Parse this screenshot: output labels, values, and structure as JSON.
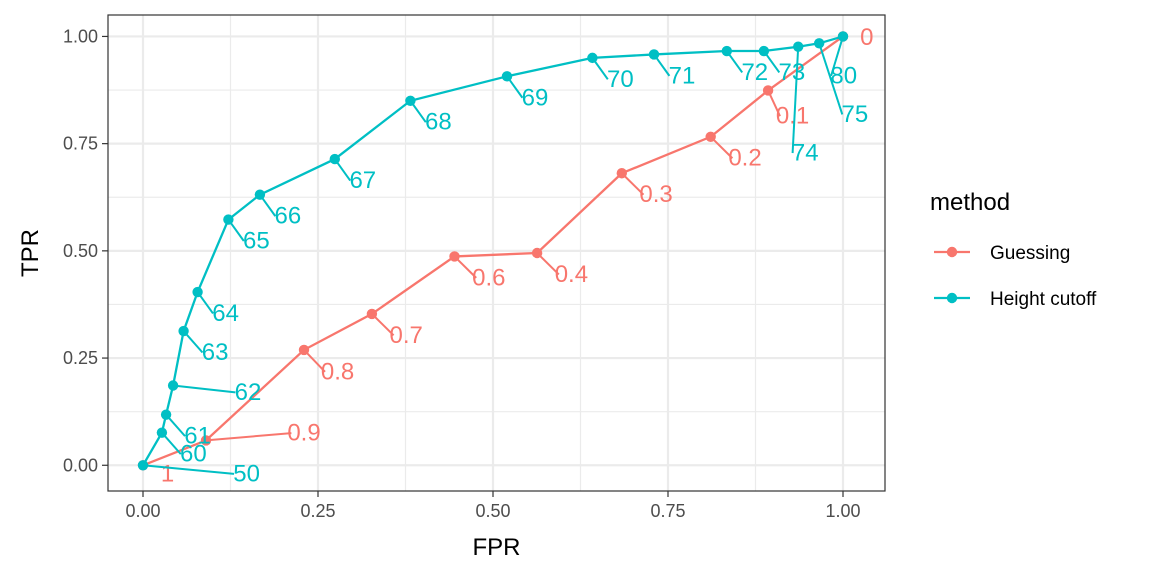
{
  "chart_data": {
    "type": "line",
    "xlabel": "FPR",
    "ylabel": "TPR",
    "xlim": [
      -0.05,
      1.06
    ],
    "ylim": [
      -0.06,
      1.05
    ],
    "x_ticks": [
      {
        "value": 0.0,
        "label": "0.00"
      },
      {
        "value": 0.25,
        "label": "0.25"
      },
      {
        "value": 0.5,
        "label": "0.50"
      },
      {
        "value": 0.75,
        "label": "0.75"
      },
      {
        "value": 1.0,
        "label": "1.00"
      }
    ],
    "y_ticks": [
      {
        "value": 0.0,
        "label": "0.00"
      },
      {
        "value": 0.25,
        "label": "0.25"
      },
      {
        "value": 0.5,
        "label": "0.50"
      },
      {
        "value": 0.75,
        "label": "0.75"
      },
      {
        "value": 1.0,
        "label": "1.00"
      }
    ],
    "grid": true,
    "legend": {
      "title": "method",
      "placement": "right"
    },
    "series": [
      {
        "name": "Guessing",
        "color": "#F8766D",
        "points": [
          {
            "x": 0.0,
            "y": 0.0,
            "label": "1",
            "lx": 0.035,
            "ly": -0.02
          },
          {
            "x": 0.09,
            "y": 0.058,
            "label": "0.9",
            "lx": 0.23,
            "ly": 0.075
          },
          {
            "x": 0.23,
            "y": 0.269,
            "label": "0.8",
            "lx": 0.278,
            "ly": 0.218
          },
          {
            "x": 0.327,
            "y": 0.353,
            "label": "0.7",
            "lx": 0.376,
            "ly": 0.303
          },
          {
            "x": 0.445,
            "y": 0.487,
            "label": "0.6",
            "lx": 0.494,
            "ly": 0.437
          },
          {
            "x": 0.563,
            "y": 0.495,
            "label": "0.4",
            "lx": 0.612,
            "ly": 0.445
          },
          {
            "x": 0.684,
            "y": 0.681,
            "label": "0.3",
            "lx": 0.733,
            "ly": 0.631
          },
          {
            "x": 0.811,
            "y": 0.766,
            "label": "0.2",
            "lx": 0.86,
            "ly": 0.716
          },
          {
            "x": 0.893,
            "y": 0.874,
            "label": "0.1",
            "lx": 0.928,
            "ly": 0.814
          },
          {
            "x": 1.0,
            "y": 1.0,
            "label": "0",
            "lx": 1.034,
            "ly": 0.998
          }
        ]
      },
      {
        "name": "Height cutoff",
        "color": "#00BFC4",
        "points": [
          {
            "x": 0.0,
            "y": 0.0,
            "label": "50",
            "lx": 0.148,
            "ly": -0.02
          },
          {
            "x": 0.027,
            "y": 0.076,
            "label": "60",
            "lx": 0.072,
            "ly": 0.026
          },
          {
            "x": 0.033,
            "y": 0.118,
            "label": "61",
            "lx": 0.078,
            "ly": 0.068
          },
          {
            "x": 0.043,
            "y": 0.186,
            "label": "62",
            "lx": 0.15,
            "ly": 0.17
          },
          {
            "x": 0.058,
            "y": 0.313,
            "label": "63",
            "lx": 0.103,
            "ly": 0.263
          },
          {
            "x": 0.078,
            "y": 0.404,
            "label": "64",
            "lx": 0.118,
            "ly": 0.354
          },
          {
            "x": 0.122,
            "y": 0.573,
            "label": "65",
            "lx": 0.162,
            "ly": 0.523
          },
          {
            "x": 0.167,
            "y": 0.631,
            "label": "66",
            "lx": 0.207,
            "ly": 0.581
          },
          {
            "x": 0.274,
            "y": 0.714,
            "label": "67",
            "lx": 0.314,
            "ly": 0.664
          },
          {
            "x": 0.382,
            "y": 0.85,
            "label": "68",
            "lx": 0.422,
            "ly": 0.8
          },
          {
            "x": 0.52,
            "y": 0.907,
            "label": "69",
            "lx": 0.56,
            "ly": 0.857
          },
          {
            "x": 0.642,
            "y": 0.95,
            "label": "70",
            "lx": 0.682,
            "ly": 0.9
          },
          {
            "x": 0.73,
            "y": 0.958,
            "label": "71",
            "lx": 0.77,
            "ly": 0.908
          },
          {
            "x": 0.834,
            "y": 0.966,
            "label": "72",
            "lx": 0.874,
            "ly": 0.916
          },
          {
            "x": 0.887,
            "y": 0.966,
            "label": "73",
            "lx": 0.927,
            "ly": 0.916
          },
          {
            "x": 0.936,
            "y": 0.976,
            "label": "74",
            "lx": 0.946,
            "ly": 0.728
          },
          {
            "x": 0.966,
            "y": 0.984,
            "label": "75",
            "lx": 1.017,
            "ly": 0.818
          },
          {
            "x": 1.0,
            "y": 1.0,
            "label": "80",
            "lx": 1.001,
            "ly": 0.908
          }
        ]
      }
    ]
  }
}
